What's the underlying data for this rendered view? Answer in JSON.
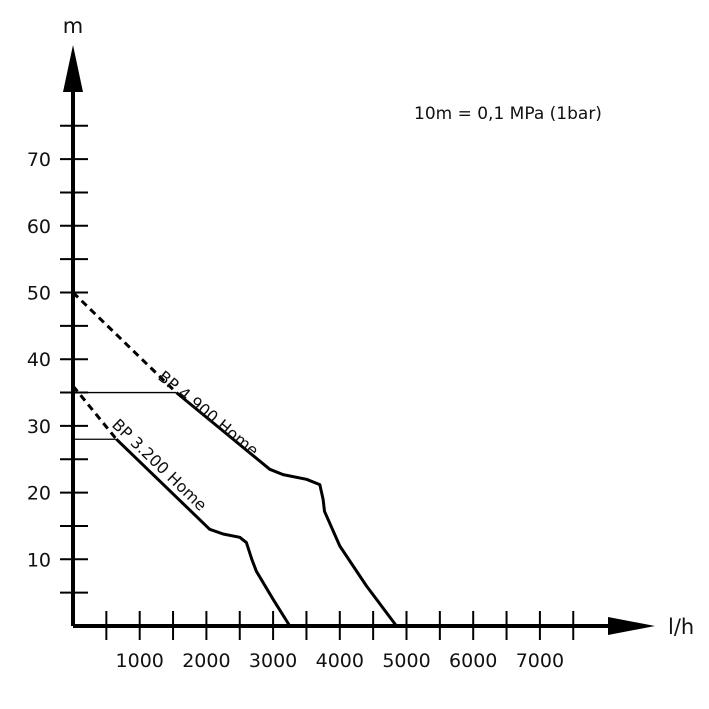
{
  "chart_data": {
    "type": "line",
    "title": "",
    "xlabel": "l/h",
    "ylabel": "m",
    "note": "10m = 0,1 MPa (1bar)",
    "xlim": [
      0,
      8000
    ],
    "ylim": [
      0,
      80
    ],
    "x_ticks": [
      1000,
      2000,
      3000,
      4000,
      5000,
      6000,
      7000
    ],
    "y_ticks": [
      10,
      20,
      30,
      40,
      50,
      60,
      70
    ],
    "grid": false,
    "series": [
      {
        "name": "BP 4.900 Home",
        "dashed": [
          [
            0,
            50
          ],
          [
            1550,
            35
          ]
        ],
        "solid": [
          [
            1550,
            35
          ],
          [
            2950,
            23.5
          ],
          [
            3150,
            22.7
          ],
          [
            3500,
            22
          ],
          [
            3700,
            21.2
          ],
          [
            3750,
            19
          ],
          [
            3770,
            17.2
          ],
          [
            4000,
            12
          ],
          [
            4400,
            6
          ],
          [
            4850,
            0
          ]
        ],
        "threshold": 35
      },
      {
        "name": "BP 3.200 Home",
        "dashed": [
          [
            0,
            36
          ],
          [
            650,
            28
          ]
        ],
        "solid": [
          [
            650,
            28
          ],
          [
            2050,
            14.5
          ],
          [
            2250,
            13.8
          ],
          [
            2500,
            13.3
          ],
          [
            2600,
            12.5
          ],
          [
            2680,
            10
          ],
          [
            2750,
            8.2
          ],
          [
            3000,
            4
          ],
          [
            3250,
            0
          ]
        ],
        "threshold": 28
      }
    ]
  }
}
